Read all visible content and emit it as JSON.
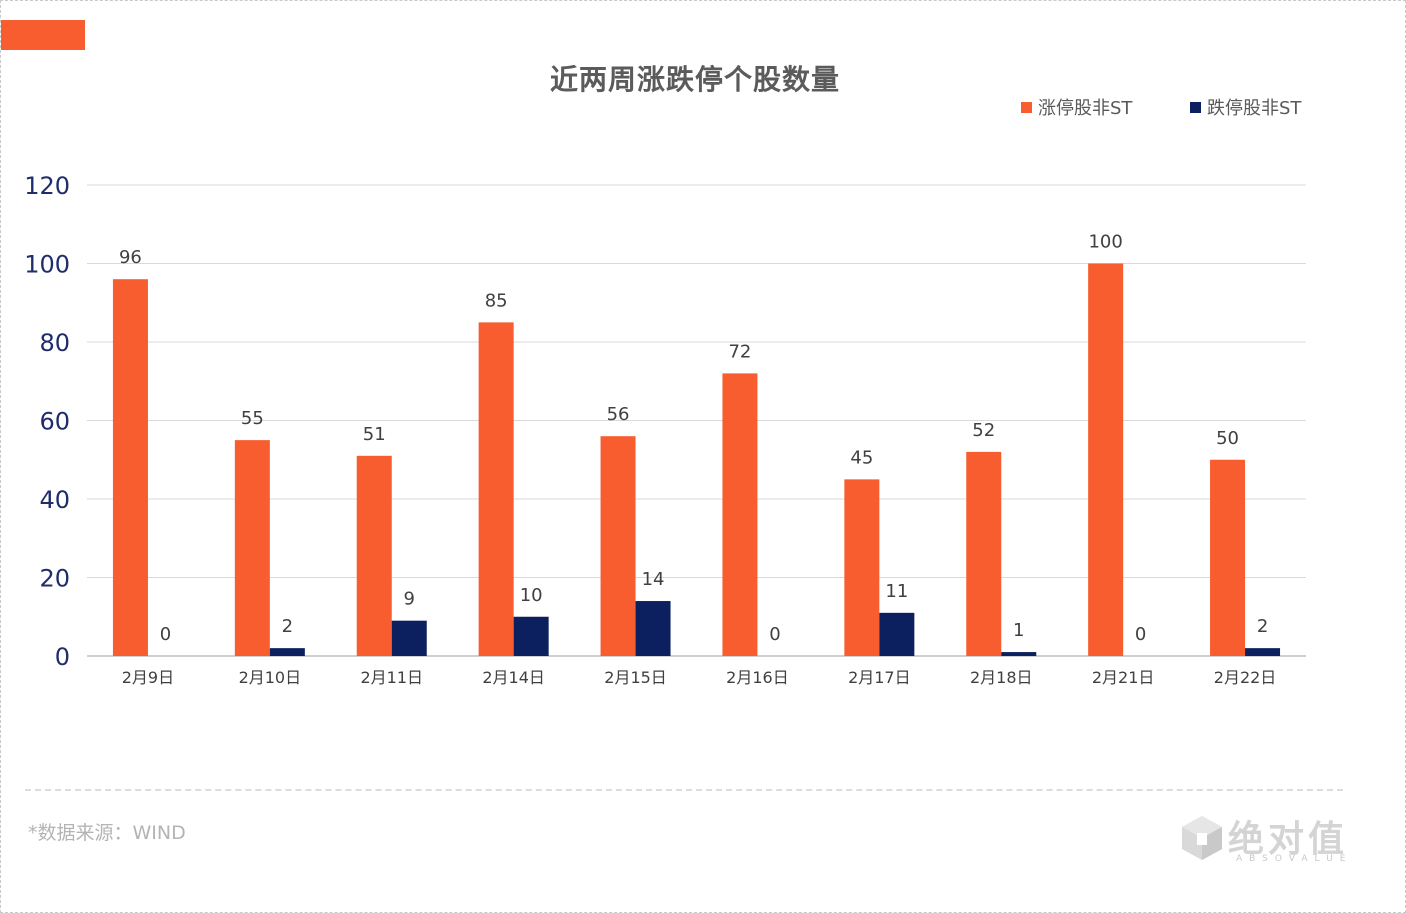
{
  "title": "近两周涨跌停个股数量",
  "source_note": "*数据来源：WIND",
  "logo": {
    "text": "绝对值",
    "subtext": "ABSOVALUE"
  },
  "colors": {
    "accent": "#f75d2f",
    "limit_up": "#f75d2f",
    "limit_down": "#0c1f5f"
  },
  "chart_data": {
    "type": "bar",
    "title": "近两周涨跌停个股数量",
    "categories": [
      "2月9日",
      "2月10日",
      "2月11日",
      "2月14日",
      "2月15日",
      "2月16日",
      "2月17日",
      "2月18日",
      "2月21日",
      "2月22日"
    ],
    "series": [
      {
        "name": "涨停股非ST",
        "color": "#f75d2f",
        "values": [
          96,
          55,
          51,
          85,
          56,
          72,
          45,
          52,
          100,
          50
        ]
      },
      {
        "name": "跌停股非ST",
        "color": "#0c1f5f",
        "values": [
          0,
          2,
          9,
          10,
          14,
          0,
          11,
          1,
          0,
          2
        ]
      }
    ],
    "ylim": [
      0,
      120
    ],
    "yticks": [
      0,
      20,
      40,
      60,
      80,
      100,
      120
    ],
    "xlabel": "",
    "ylabel": "",
    "grid": true,
    "legend_position": "top-right",
    "data_labels": true
  }
}
